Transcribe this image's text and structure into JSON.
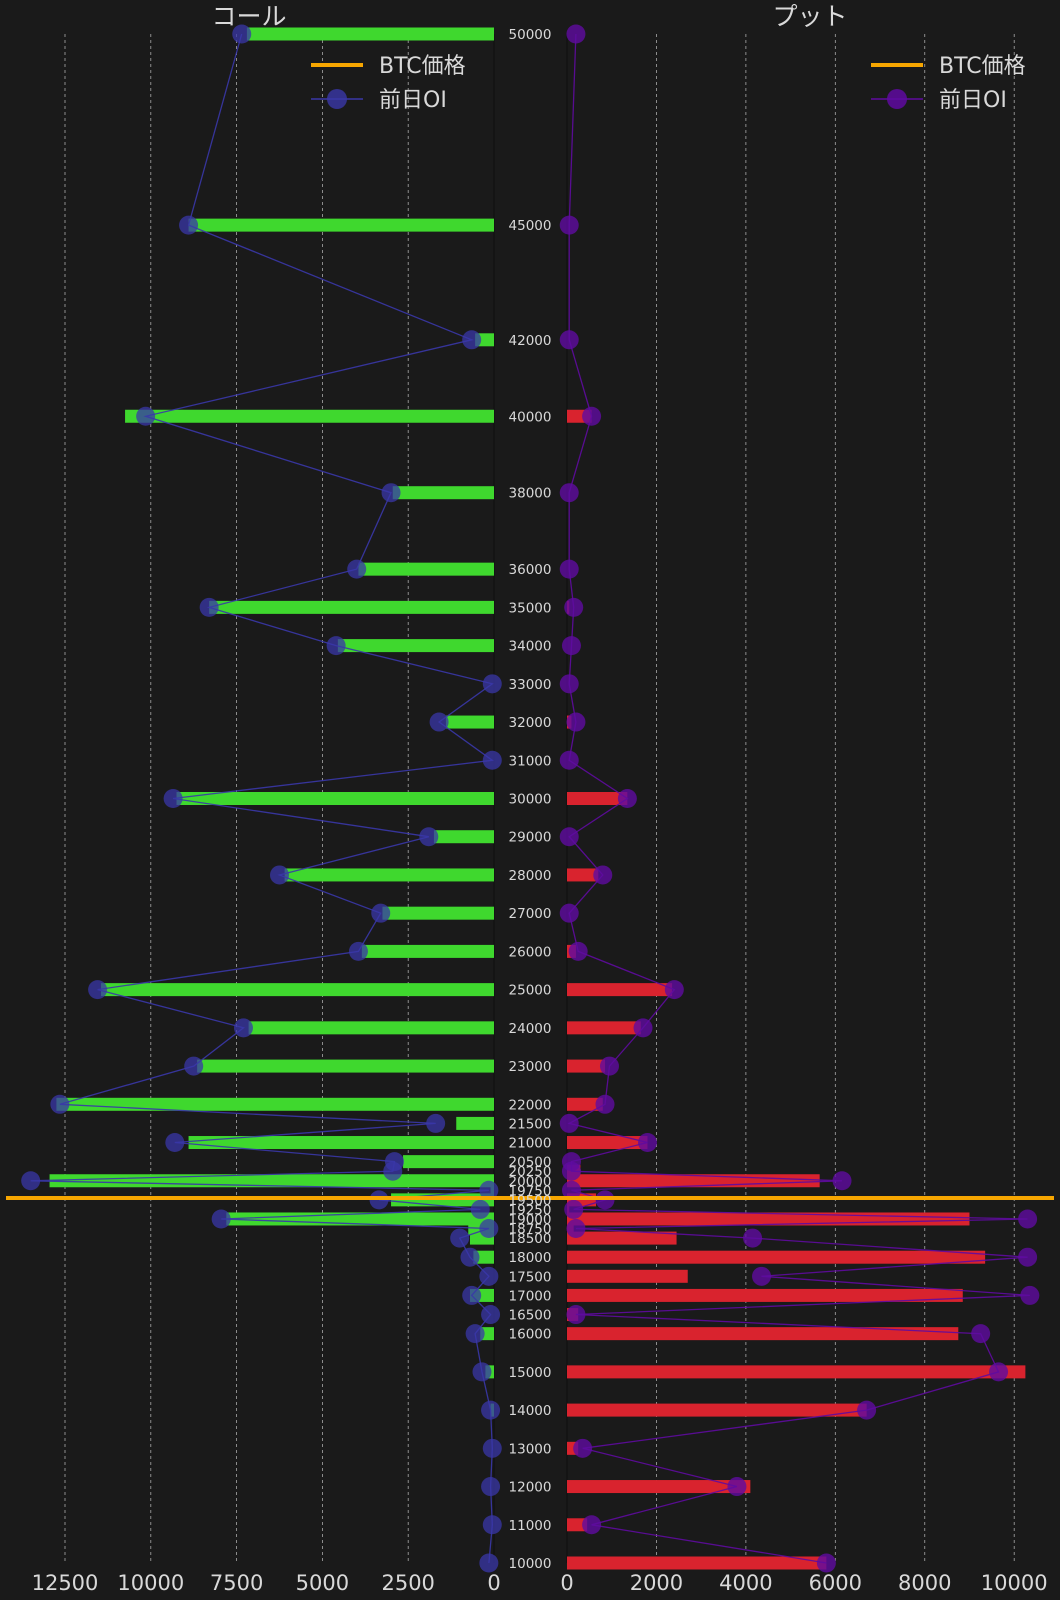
{
  "chart_data": {
    "type": "bar",
    "orientation": "horizontal",
    "strikes": [
      50000,
      45000,
      42000,
      40000,
      38000,
      36000,
      35000,
      34000,
      33000,
      32000,
      31000,
      30000,
      29000,
      28000,
      27000,
      26000,
      25000,
      24000,
      23000,
      22000,
      21500,
      21000,
      20500,
      20250,
      20000,
      19750,
      19500,
      19250,
      19000,
      18750,
      18500,
      18000,
      17500,
      17000,
      16500,
      16000,
      15000,
      14000,
      13000,
      12000,
      11000,
      10000
    ],
    "btc_price": 19550,
    "panels": [
      {
        "title": "コール",
        "side": "left",
        "xlim": [
          0,
          13800
        ],
        "xticks": [
          12500,
          10000,
          7500,
          5000,
          2500,
          0
        ],
        "xtick_labels": [
          "12500",
          "10000",
          "7500",
          "5000",
          "2500",
          "0"
        ],
        "series": [
          {
            "name": "",
            "kind": "bar",
            "color": "#3fd82e",
            "values": [
              7200,
              8900,
              550,
              10750,
              2950,
              3950,
              8300,
              4550,
              0,
              1400,
              0,
              9250,
              1750,
              6100,
              3250,
              3850,
              11450,
              7150,
              8650,
              12750,
              1100,
              8900,
              2650,
              0,
              12950,
              100,
              3000,
              0,
              7800,
              750,
              700,
              600,
              0,
              700,
              0,
              400,
              250,
              100,
              0,
              0,
              0,
              0
            ]
          },
          {
            "name": "前日OI",
            "kind": "line-marker",
            "color": "#3a37a8",
            "values": [
              7350,
              8900,
              650,
              10150,
              3000,
              4000,
              8300,
              4600,
              50,
              1600,
              50,
              9350,
              1900,
              6250,
              3300,
              3950,
              11550,
              7300,
              8750,
              12650,
              1700,
              9300,
              2900,
              2950,
              13500,
              150,
              3350,
              400,
              7950,
              150,
              1000,
              700,
              150,
              650,
              100,
              550,
              350,
              100,
              50,
              100,
              50,
              150
            ]
          }
        ],
        "legend": {
          "price_label": "BTC価格",
          "prev_label": "前日OI",
          "price_color": "#f7a600"
        }
      },
      {
        "title": "プット",
        "side": "right",
        "xlim": [
          0,
          10800
        ],
        "xticks": [
          0,
          2000,
          4000,
          6000,
          8000,
          10000
        ],
        "xtick_labels": [
          "0",
          "2000",
          "4000",
          "6000",
          "8000",
          "10000"
        ],
        "series": [
          {
            "name": "",
            "kind": "bar",
            "color": "#d9232e",
            "values": [
              0,
              0,
              0,
              550,
              0,
              0,
              50,
              0,
              0,
              100,
              0,
              1350,
              0,
              700,
              0,
              200,
              2350,
              1650,
              850,
              800,
              0,
              1800,
              0,
              300,
              5650,
              0,
              650,
              50,
              9000,
              150,
              2450,
              9350,
              2700,
              8850,
              250,
              8750,
              10250,
              6700,
              250,
              4100,
              450,
              5800
            ]
          },
          {
            "name": "前日OI",
            "kind": "line-marker",
            "color": "#5f0ba0",
            "values": [
              200,
              50,
              50,
              550,
              50,
              50,
              150,
              100,
              50,
              200,
              50,
              1350,
              50,
              800,
              50,
              250,
              2400,
              1700,
              950,
              850,
              50,
              1800,
              100,
              100,
              6150,
              100,
              850,
              150,
              10300,
              200,
              4150,
              10300,
              4350,
              10350,
              200,
              9250,
              9650,
              6700,
              350,
              3800,
              550,
              5800
            ]
          }
        ],
        "legend": {
          "price_label": "BTC価格",
          "prev_label": "前日OI",
          "price_color": "#f7a600"
        }
      }
    ]
  }
}
